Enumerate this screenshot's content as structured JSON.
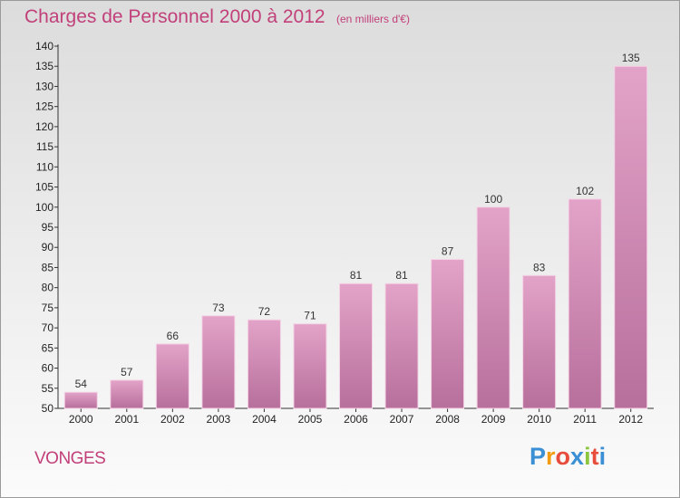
{
  "header": {
    "title": "Charges de Personnel 2000 à 2012",
    "subtitle": "(en milliers d'€)"
  },
  "footer": {
    "commune": "VONGES",
    "logo_letters": [
      "P",
      "r",
      "o",
      "x",
      "i",
      "t",
      "i"
    ],
    "logo_colors": [
      "#3b8fd4",
      "#f39c12",
      "#e74c3c",
      "#3b8fd4",
      "#8cc63f",
      "#e74c3c",
      "#3b8fd4"
    ]
  },
  "colors": {
    "accent": "#c2407a",
    "bar_top": "#e3a3c8",
    "bar_bottom": "#b76f9c"
  },
  "chart_data": {
    "type": "bar",
    "categories": [
      "2000",
      "2001",
      "2002",
      "2003",
      "2004",
      "2005",
      "2006",
      "2007",
      "2008",
      "2009",
      "2010",
      "2011",
      "2012"
    ],
    "values": [
      54,
      57,
      66,
      73,
      72,
      71,
      81,
      81,
      87,
      100,
      83,
      102,
      135
    ],
    "title": "Charges de Personnel 2000 à 2012",
    "subtitle": "(en milliers d'€)",
    "ylim": [
      50,
      140
    ],
    "yticks": [
      50,
      55,
      60,
      65,
      70,
      75,
      80,
      85,
      90,
      95,
      100,
      105,
      110,
      115,
      120,
      125,
      130,
      135,
      140
    ],
    "grid": false,
    "data_labels": true
  }
}
